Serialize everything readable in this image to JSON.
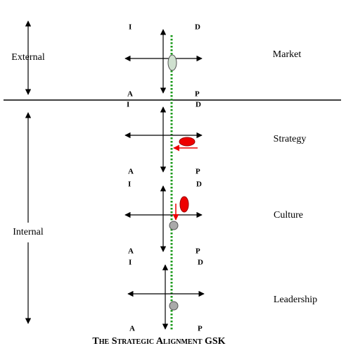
{
  "title": "The Strategic Alignment GSK",
  "zones": [
    {
      "label": "External"
    },
    {
      "label": "Internal"
    }
  ],
  "panels": [
    {
      "label": "Market",
      "corners": {
        "top_left": "I",
        "top_right": "D",
        "bottom_left": "A",
        "bottom_right": "P"
      }
    },
    {
      "label": "Strategy",
      "corners": {
        "top_left": "I",
        "top_right": "D",
        "bottom_left": "A",
        "bottom_right": "P"
      }
    },
    {
      "label": "Culture",
      "corners": {
        "top_left": "I",
        "top_right": "D",
        "bottom_left": "A",
        "bottom_right": "P"
      }
    },
    {
      "label": "Leadership",
      "corners": {
        "top_left": "I",
        "top_right": "D",
        "bottom_left": "A",
        "bottom_right": "P"
      }
    }
  ]
}
